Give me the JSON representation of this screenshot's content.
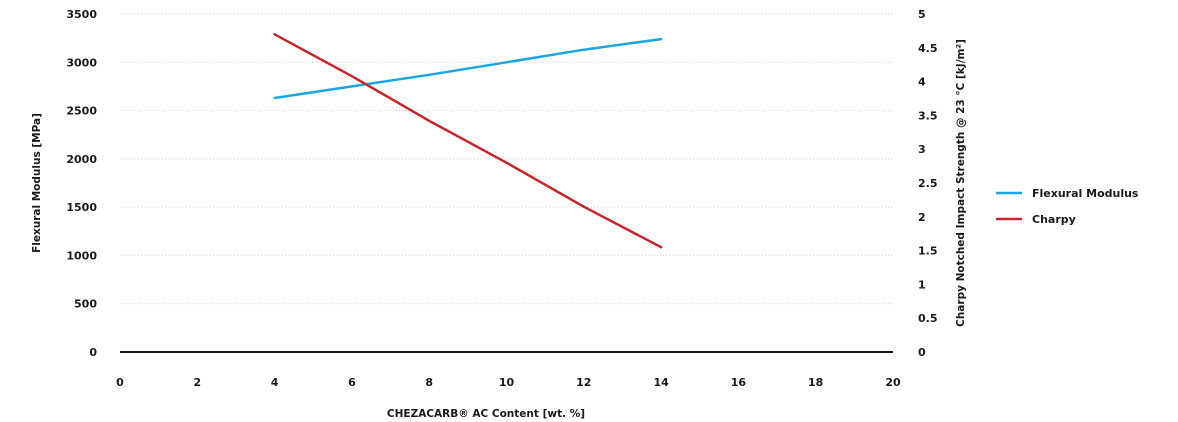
{
  "chart_data": {
    "type": "line",
    "xlabel": "CHEZACARB® AC Content [wt. %]",
    "ylabel": "Flexural Modulus [MPa]",
    "y2label": "Charpy Notched Impact Strength @ 23 °C [kJ/m²]",
    "xlim": [
      0,
      20
    ],
    "ylim": [
      0,
      3500
    ],
    "y2lim": [
      0,
      5
    ],
    "x_ticks": [
      0,
      2,
      4,
      6,
      8,
      10,
      12,
      14,
      16,
      18,
      20
    ],
    "y_ticks": [
      0,
      500,
      1000,
      1500,
      2000,
      2500,
      3000,
      3500
    ],
    "y2_ticks": [
      "0",
      "0.5",
      "1",
      "1.5",
      "2",
      "2.5",
      "3",
      "3.5",
      "4",
      "4.5",
      "5"
    ],
    "grid": true,
    "legend_position": "right",
    "series": [
      {
        "name": "Flexural Modulus",
        "axis": "left",
        "color": "#1aa7e0",
        "x": [
          4,
          6,
          8,
          10,
          12,
          14
        ],
        "values": [
          2630,
          2750,
          2870,
          3000,
          3130,
          3240
        ]
      },
      {
        "name": "Charpy",
        "axis": "right",
        "color": "#cc2229",
        "x": [
          4,
          6,
          8,
          10,
          12,
          14
        ],
        "values": [
          4.7,
          4.08,
          3.42,
          2.8,
          2.15,
          1.55
        ]
      }
    ]
  }
}
